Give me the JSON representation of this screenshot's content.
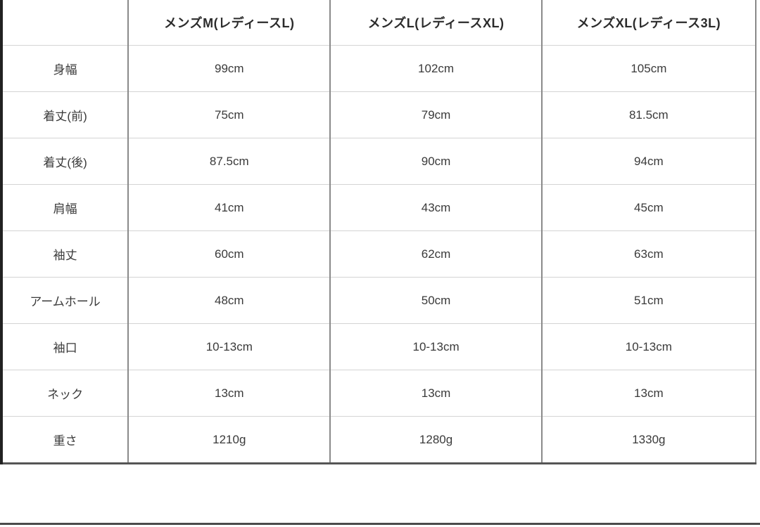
{
  "chart_data": {
    "type": "table",
    "title": "",
    "columns": [
      "",
      "メンズM(レディースL)",
      "メンズL(レディースXL)",
      "メンズXL(レディース3L)"
    ],
    "rows": [
      {
        "label": "身幅",
        "values": [
          "99cm",
          "102cm",
          "105cm"
        ]
      },
      {
        "label": "着丈(前)",
        "values": [
          "75cm",
          "79cm",
          "81.5cm"
        ]
      },
      {
        "label": "着丈(後)",
        "values": [
          "87.5cm",
          "90cm",
          "94cm"
        ]
      },
      {
        "label": "肩幅",
        "values": [
          "41cm",
          "43cm",
          "45cm"
        ]
      },
      {
        "label": "袖丈",
        "values": [
          "60cm",
          "62cm",
          "63cm"
        ]
      },
      {
        "label": "アームホール",
        "values": [
          "48cm",
          "50cm",
          "51cm"
        ]
      },
      {
        "label": "袖口",
        "values": [
          "10-13cm",
          "10-13cm",
          "10-13cm"
        ]
      },
      {
        "label": "ネック",
        "values": [
          "13cm",
          "13cm",
          "13cm"
        ]
      },
      {
        "label": "重さ",
        "values": [
          "1210g",
          "1280g",
          "1330g"
        ]
      }
    ]
  },
  "colors": {
    "background": "#ffffff",
    "text": "#3a3a3a",
    "header_text": "#2b2b2b",
    "vertical_rule": "#8a8a8a",
    "horizontal_rule": "#d4d4d4",
    "left_border": "#222222",
    "table_bottom_border": "#555555",
    "page_bottom_rule": "#4a4a4a"
  }
}
